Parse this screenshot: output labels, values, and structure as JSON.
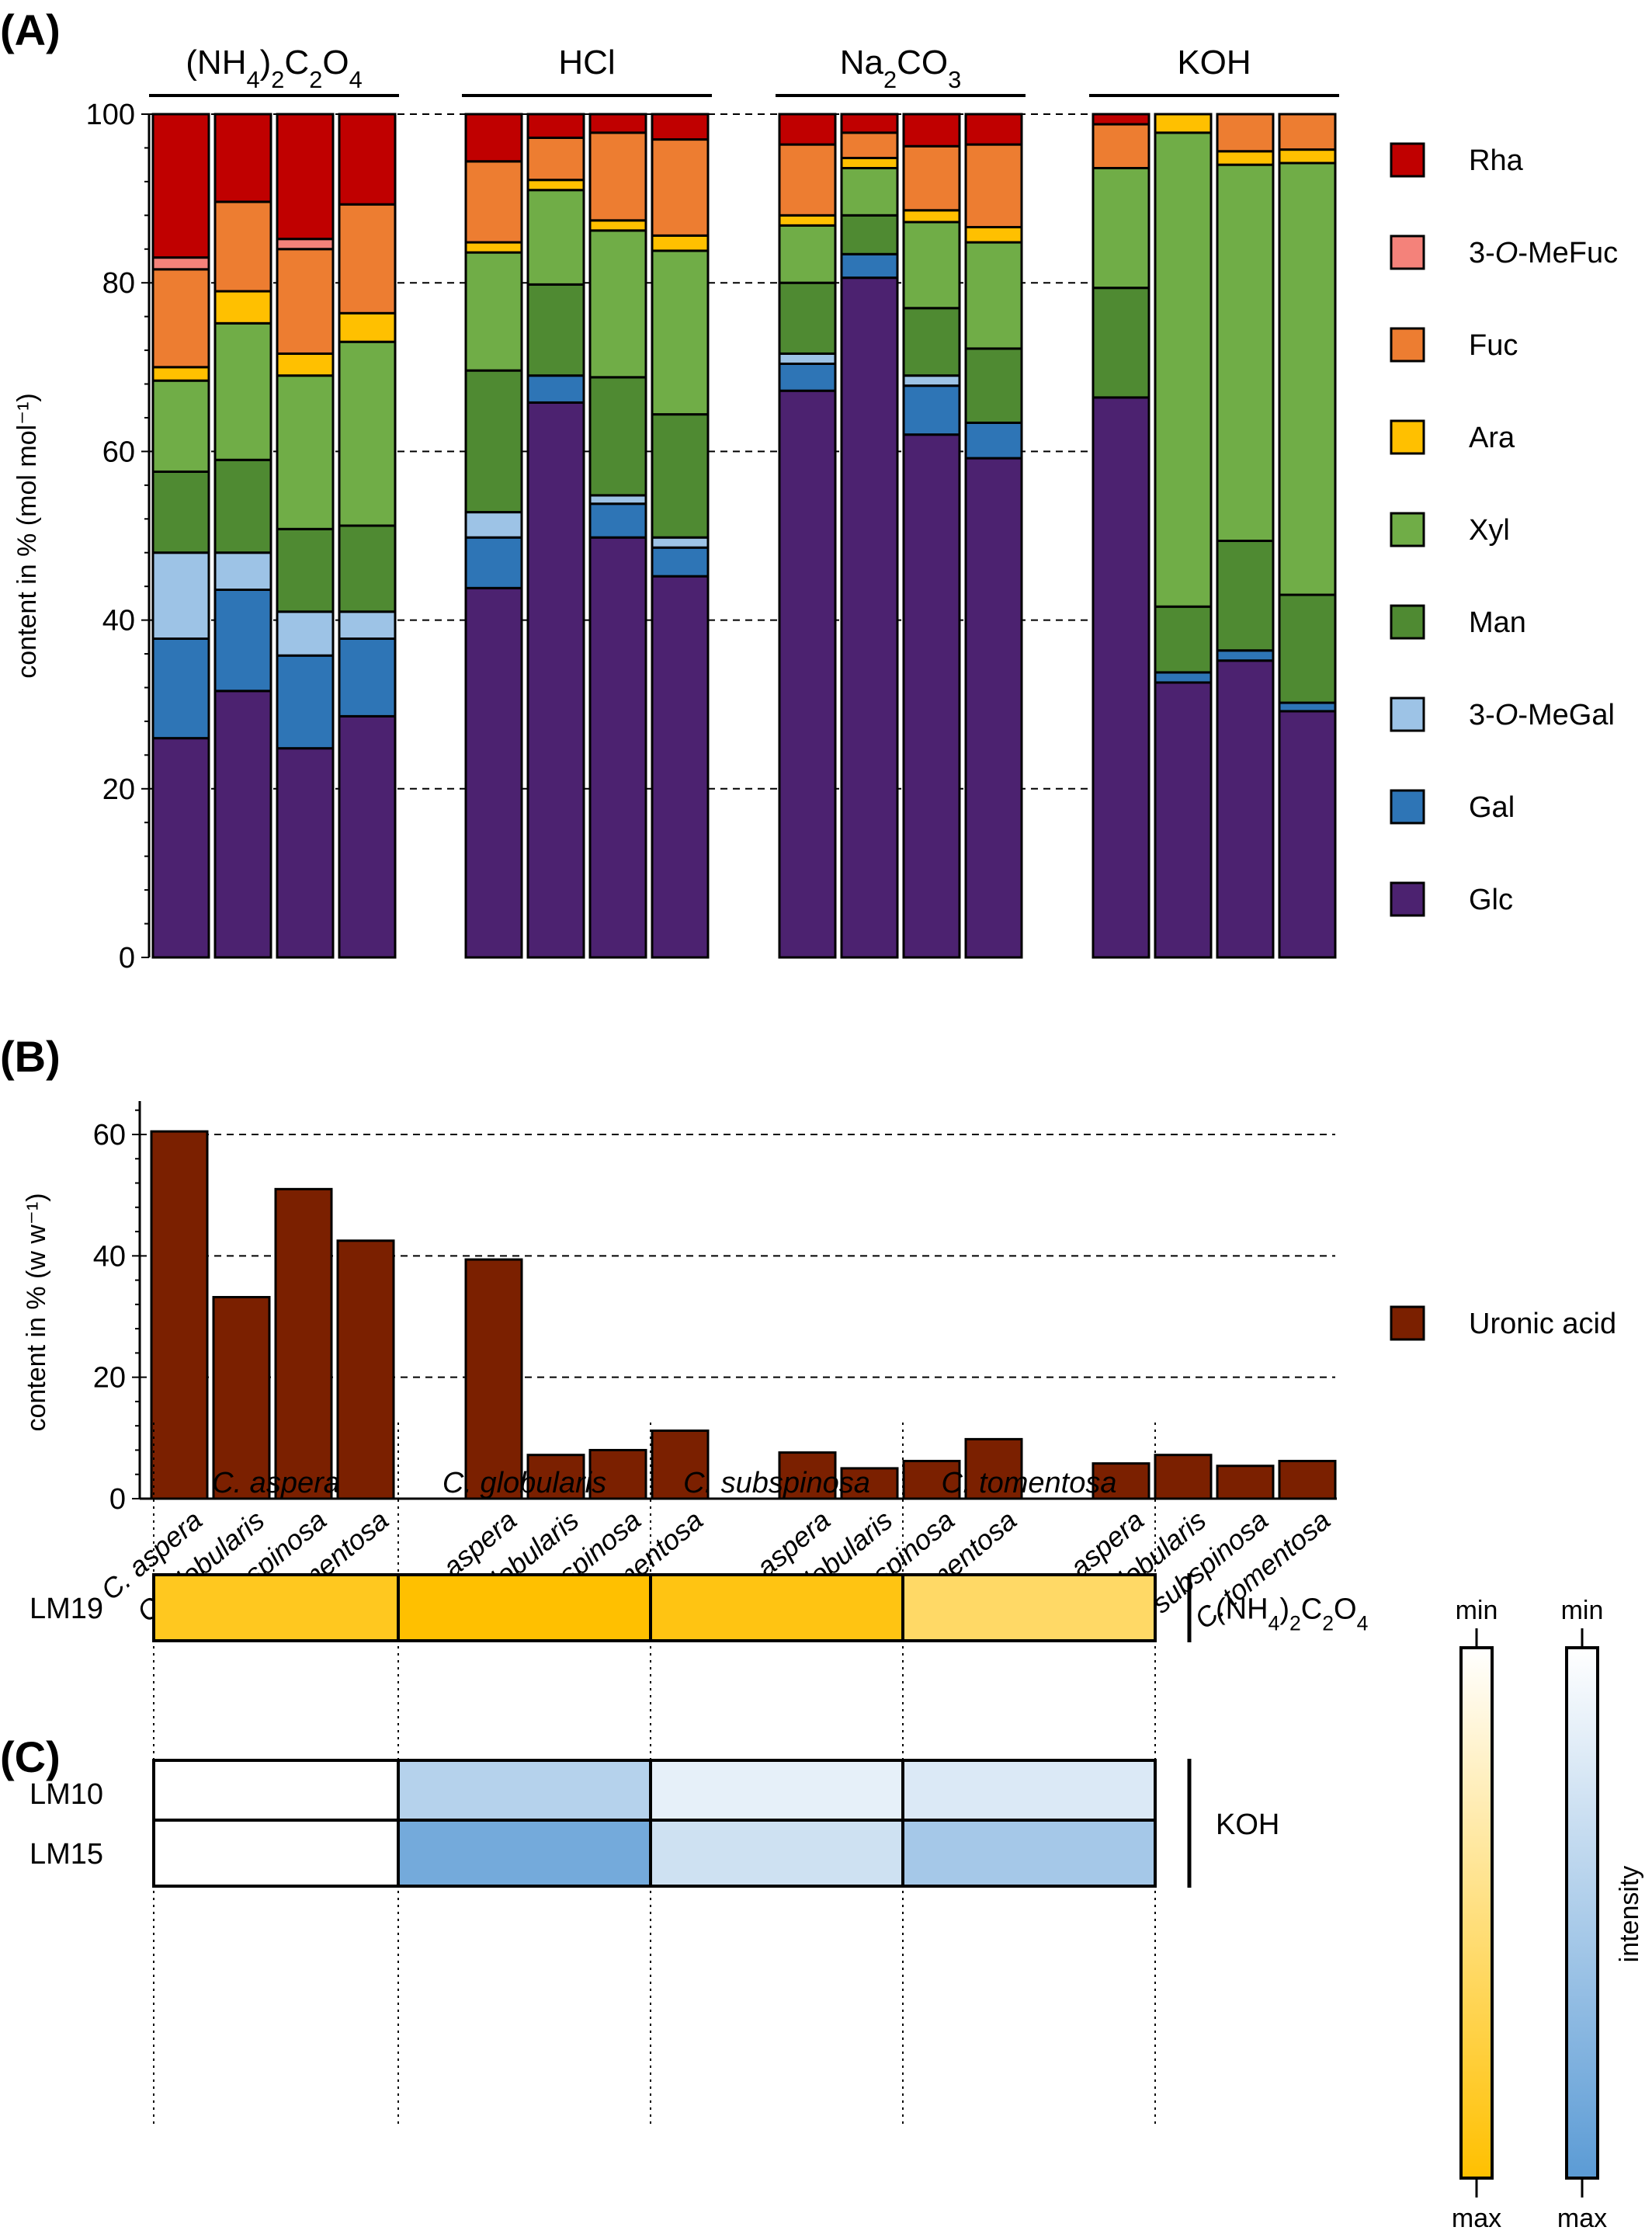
{
  "panels": {
    "a_label": "(A)",
    "b_label": "(B)",
    "c_label": "(C)"
  },
  "chart_data": [
    {
      "type": "bar",
      "stacked": true,
      "panel": "(A)",
      "ylabel": "content in % (mol mol⁻¹)",
      "ylim": [
        0,
        100
      ],
      "yticks": [
        0,
        20,
        40,
        60,
        80,
        100
      ],
      "grid": "dashed horizontal",
      "legend_position": "right",
      "groups": [
        "(NH₄)₂C₂O₄",
        "HCl",
        "Na₂CO₃",
        "KOH"
      ],
      "categories": [
        "C. aspera",
        "C. globularis",
        "C. subspinosa",
        "C. tomentosa"
      ],
      "series_order_bottom_to_top": [
        "Glc",
        "Gal",
        "3-O-MeGal",
        "Man",
        "Xyl",
        "Ara",
        "Fuc",
        "3-O-MeFuc",
        "Rha"
      ],
      "legend_order": [
        "Rha",
        "3-O-MeFuc",
        "Fuc",
        "Ara",
        "Xyl",
        "Man",
        "3-O-MeGal",
        "Gal",
        "Glc"
      ],
      "colors": {
        "Rha": "#c00000",
        "3-O-MeFuc": "#f4827a",
        "Fuc": "#ed7d31",
        "Ara": "#ffc000",
        "Xyl": "#70ad47",
        "Man": "#4f8a32",
        "3-O-MeGal": "#9dc3e6",
        "Gal": "#2e75b6",
        "Glc": "#4c2270"
      },
      "bars": [
        {
          "group": 0,
          "category": "C. aspera",
          "values": {
            "Glc": 26,
            "Gal": 11.8,
            "3-O-MeGal": 10.2,
            "Man": 9.6,
            "Xyl": 10.8,
            "Ara": 1.6,
            "Fuc": 11.6,
            "3-O-MeFuc": 1.4,
            "Rha": 17
          }
        },
        {
          "group": 0,
          "category": "C. globularis",
          "values": {
            "Glc": 31.6,
            "Gal": 12,
            "3-O-MeGal": 4.4,
            "Man": 11,
            "Xyl": 16.2,
            "Ara": 3.8,
            "Fuc": 10.6,
            "3-O-MeFuc": 0,
            "Rha": 10.4
          }
        },
        {
          "group": 0,
          "category": "C. subspinosa",
          "values": {
            "Glc": 24.8,
            "Gal": 11,
            "3-O-MeGal": 5.2,
            "Man": 9.8,
            "Xyl": 18.2,
            "Ara": 2.6,
            "Fuc": 12.4,
            "3-O-MeFuc": 1.2,
            "Rha": 14.8
          }
        },
        {
          "group": 0,
          "category": "C. tomentosa",
          "values": {
            "Glc": 28.6,
            "Gal": 9.2,
            "3-O-MeGal": 3.2,
            "Man": 10.2,
            "Xyl": 21.8,
            "Ara": 3.4,
            "Fuc": 12.9,
            "3-O-MeFuc": 0,
            "Rha": 10.7
          }
        },
        {
          "group": 1,
          "category": "C. aspera",
          "values": {
            "Glc": 43.8,
            "Gal": 6,
            "3-O-MeGal": 3,
            "Man": 16.8,
            "Xyl": 14,
            "Ara": 1.2,
            "Fuc": 9.6,
            "3-O-MeFuc": 0,
            "Rha": 5.6
          }
        },
        {
          "group": 1,
          "category": "C. globularis",
          "values": {
            "Glc": 65.8,
            "Gal": 3.2,
            "3-O-MeGal": 0,
            "Man": 10.8,
            "Xyl": 11.2,
            "Ara": 1.2,
            "Fuc": 5,
            "3-O-MeFuc": 0,
            "Rha": 2.8
          }
        },
        {
          "group": 1,
          "category": "C. subspinosa",
          "values": {
            "Glc": 49.8,
            "Gal": 4,
            "3-O-MeGal": 1,
            "Man": 14,
            "Xyl": 17.4,
            "Ara": 1.2,
            "Fuc": 10.4,
            "3-O-MeFuc": 0,
            "Rha": 2.2
          }
        },
        {
          "group": 1,
          "category": "C. tomentosa",
          "values": {
            "Glc": 45.2,
            "Gal": 3.4,
            "3-O-MeGal": 1.2,
            "Man": 14.6,
            "Xyl": 19.4,
            "Ara": 1.8,
            "Fuc": 11.4,
            "3-O-MeFuc": 0,
            "Rha": 3
          }
        },
        {
          "group": 2,
          "category": "C. aspera",
          "values": {
            "Glc": 67.2,
            "Gal": 3.2,
            "3-O-MeGal": 1.2,
            "Man": 8.4,
            "Xyl": 6.8,
            "Ara": 1.2,
            "Fuc": 8.4,
            "3-O-MeFuc": 0,
            "Rha": 3.6
          }
        },
        {
          "group": 2,
          "category": "C. globularis",
          "values": {
            "Glc": 80.6,
            "Gal": 2.8,
            "3-O-MeGal": 0,
            "Man": 4.6,
            "Xyl": 5.6,
            "Ara": 1.2,
            "Fuc": 3,
            "3-O-MeFuc": 0,
            "Rha": 2.2
          }
        },
        {
          "group": 2,
          "category": "C. subspinosa",
          "values": {
            "Glc": 62,
            "Gal": 5.8,
            "3-O-MeGal": 1.2,
            "Man": 8,
            "Xyl": 10.2,
            "Ara": 1.4,
            "Fuc": 7.6,
            "3-O-MeFuc": 0,
            "Rha": 3.8
          }
        },
        {
          "group": 2,
          "category": "C. tomentosa",
          "values": {
            "Glc": 59.2,
            "Gal": 4.2,
            "3-O-MeGal": 0,
            "Man": 8.8,
            "Xyl": 12.6,
            "Ara": 1.8,
            "Fuc": 9.8,
            "3-O-MeFuc": 0,
            "Rha": 3.6
          }
        },
        {
          "group": 3,
          "category": "C. aspera",
          "values": {
            "Glc": 66.4,
            "Gal": 0,
            "3-O-MeGal": 0,
            "Man": 13,
            "Xyl": 14.2,
            "Ara": 0,
            "Fuc": 5.2,
            "3-O-MeFuc": 0,
            "Rha": 1.2
          }
        },
        {
          "group": 3,
          "category": "C. globularis",
          "values": {
            "Glc": 32.6,
            "Gal": 1.2,
            "3-O-MeGal": 0,
            "Man": 7.8,
            "Xyl": 56.2,
            "Ara": 2.2,
            "Fuc": 0,
            "3-O-MeFuc": 0,
            "Rha": 0
          }
        },
        {
          "group": 3,
          "category": "C. subspinosa",
          "values": {
            "Glc": 35.2,
            "Gal": 1.2,
            "3-O-MeGal": 0,
            "Man": 13,
            "Xyl": 44.6,
            "Ara": 1.6,
            "Fuc": 4.4,
            "3-O-MeFuc": 0,
            "Rha": 0
          }
        },
        {
          "group": 3,
          "category": "C. tomentosa",
          "values": {
            "Glc": 29.2,
            "Gal": 1,
            "3-O-MeGal": 0,
            "Man": 12.8,
            "Xyl": 51.2,
            "Ara": 1.6,
            "Fuc": 4.2,
            "3-O-MeFuc": 0,
            "Rha": 0
          }
        }
      ]
    },
    {
      "type": "bar",
      "panel": "(B)",
      "ylabel": "content in % (w w⁻¹)",
      "ylim": [
        0,
        65
      ],
      "yticks": [
        0,
        20,
        40,
        60
      ],
      "grid": "dashed horizontal",
      "legend_position": "right",
      "series": [
        {
          "name": "Uronic acid",
          "color": "#7b2000",
          "values": [
            60.5,
            33.2,
            51,
            42.5,
            39.4,
            7.2,
            8,
            11.2,
            7.6,
            5,
            6.2,
            9.8,
            5.8,
            7.2,
            5.4,
            6.2
          ]
        }
      ],
      "categories": [
        "C. aspera",
        "C. globularis",
        "C. subspinosa",
        "C. tomentosa",
        "C. aspera",
        "C. globularis",
        "C. subspinosa",
        "C. tomentosa",
        "C. aspera",
        "C. globularis",
        "C. subspinosa",
        "C. tomentosa",
        "C. aspera",
        "C. globularis",
        "C. subspinosa",
        "C. tomentosa"
      ]
    },
    {
      "type": "heatmap",
      "panel": "(C)",
      "columns": [
        "C. aspera",
        "C. globularis",
        "C. subspinosa",
        "C. tomentosa"
      ],
      "blocks": [
        {
          "fraction": "(NH₄)₂C₂O₄",
          "scale": "yellow",
          "rows": [
            {
              "label": "LM19",
              "intensity": [
                0.88,
                1.0,
                0.93,
                0.6
              ]
            }
          ]
        },
        {
          "fraction": "KOH",
          "scale": "blue",
          "rows": [
            {
              "label": "LM10",
              "intensity": [
                0.0,
                0.45,
                0.15,
                0.22
              ]
            },
            {
              "label": "LM15",
              "intensity": [
                0.0,
                0.85,
                0.3,
                0.55
              ]
            }
          ]
        }
      ],
      "colorbar": {
        "min_label": "min",
        "max_label": "max",
        "title": "intensity"
      }
    }
  ],
  "colors": {
    "yellow_max": "#ffc000",
    "blue_max": "#5b9bd5"
  }
}
